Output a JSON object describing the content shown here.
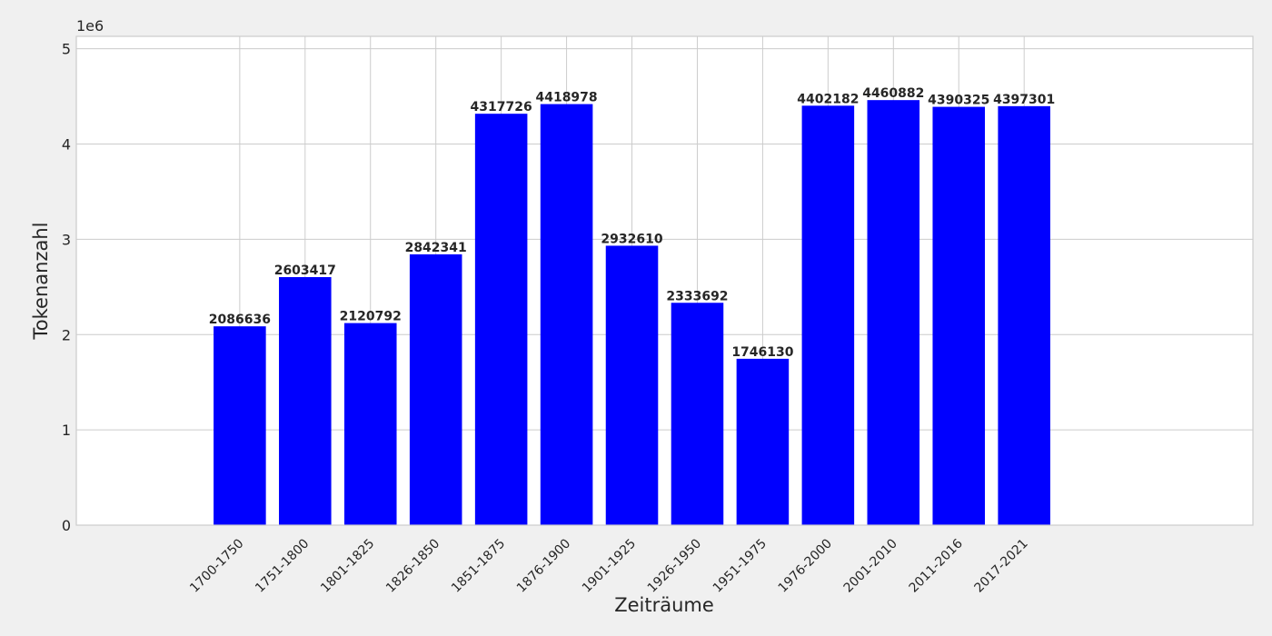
{
  "chart_data": {
    "type": "bar",
    "categories": [
      "1700-1750",
      "1751-1800",
      "1801-1825",
      "1826-1850",
      "1851-1875",
      "1876-1900",
      "1901-1925",
      "1926-1950",
      "1951-1975",
      "1976-2000",
      "2001-2010",
      "2011-2016",
      "2017-2021"
    ],
    "values": [
      2086636,
      2603417,
      2120792,
      2842341,
      4317726,
      4418978,
      2932610,
      2333692,
      1746130,
      4402182,
      4460882,
      4390325,
      4397301
    ],
    "data_labels": [
      "2086636",
      "2603417",
      "2120792",
      "2842341",
      "4317726",
      "4418978",
      "2932610",
      "2333692",
      "1746130",
      "4402182",
      "4460882",
      "4390325",
      "4397301"
    ],
    "title": "",
    "xlabel": "Zeiträume",
    "ylabel": "Tokenanzahl",
    "y_offset_label": "1e6",
    "ylim": [
      0,
      5130000
    ],
    "xlim": [
      -2.5,
      15.5
    ],
    "yticks": [
      0,
      1000000,
      2000000,
      3000000,
      4000000,
      5000000
    ],
    "ytick_labels": [
      "0",
      "1",
      "2",
      "3",
      "4",
      "5"
    ],
    "bar_color": "#0000ff",
    "grid": true,
    "legend": "none"
  }
}
